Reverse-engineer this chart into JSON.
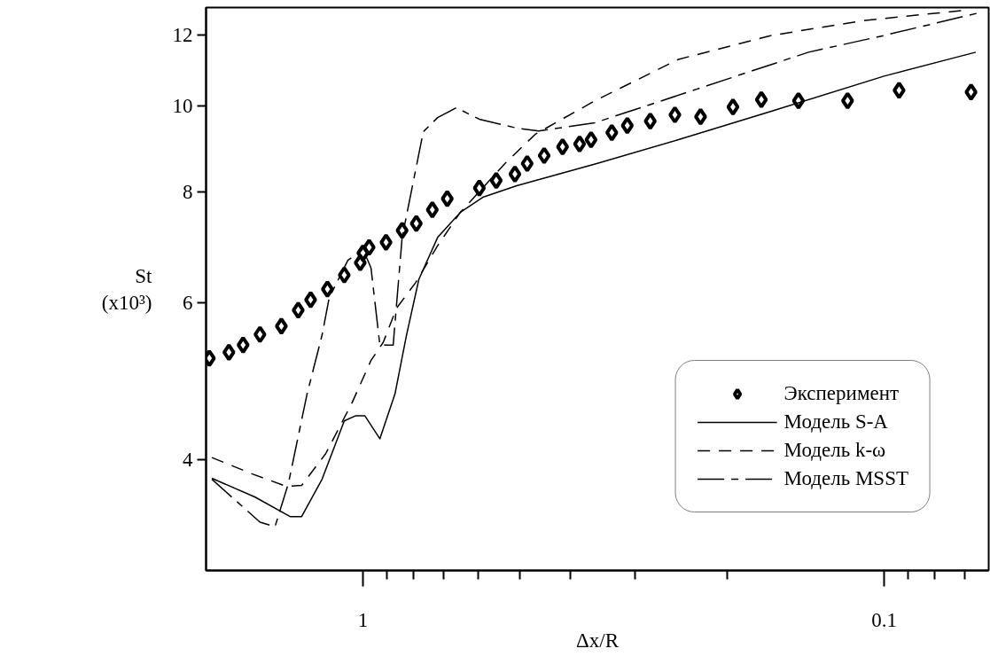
{
  "chart_data": {
    "type": "line",
    "xlabel": "Δx/R",
    "ylabel": "St\n(x10³)",
    "log": "xy",
    "grid": false,
    "legend": "bottom right",
    "xlim": [
      2.0,
      0.063
    ],
    "ylim": [
      3.0,
      12.9
    ],
    "xticks": [
      1,
      0.1,
      {
        "value": 0.9,
        "label": null
      },
      {
        "value": 0.8,
        "label": null
      },
      {
        "value": 0.7,
        "label": null
      },
      {
        "value": 0.6,
        "label": null
      },
      {
        "value": 0.5,
        "label": null
      },
      {
        "value": 0.4,
        "label": null
      },
      {
        "value": 0.3,
        "label": null
      },
      {
        "value": 0.2,
        "label": null
      },
      {
        "value": 0.09,
        "label": null
      },
      {
        "value": 0.08,
        "label": null
      },
      {
        "value": 0.07,
        "label": null
      }
    ],
    "yticks": [
      4,
      6,
      8,
      10,
      12
    ],
    "series": [
      {
        "name": "Эксперимент",
        "type": "scatter",
        "marker": "diamond",
        "color": "#000000",
        "x": [
          1.971,
          1.808,
          1.698,
          1.576,
          1.434,
          1.331,
          1.26,
          1.17,
          1.086,
          1.012,
          1.0,
          0.973,
          0.903,
          0.841,
          0.79,
          0.736,
          0.689,
          0.598,
          0.555,
          0.511,
          0.484,
          0.449,
          0.414,
          0.384,
          0.365,
          0.333,
          0.311,
          0.281,
          0.252,
          0.225,
          0.195,
          0.172,
          0.146,
          0.1175,
          0.0936,
          0.0681
        ],
        "values": [
          5.2,
          5.28,
          5.38,
          5.53,
          5.65,
          5.89,
          6.05,
          6.22,
          6.45,
          6.66,
          6.83,
          6.93,
          7.02,
          7.24,
          7.37,
          7.64,
          7.86,
          8.08,
          8.24,
          8.38,
          8.61,
          8.79,
          8.99,
          9.06,
          9.16,
          9.33,
          9.5,
          9.61,
          9.77,
          9.72,
          9.97,
          10.16,
          10.13,
          10.13,
          10.41,
          10.36
        ]
      },
      {
        "name": "Модель S-A",
        "line_style": "solid",
        "marker": "none",
        "color": "#000000",
        "x": [
          1.949,
          1.613,
          1.38,
          1.311,
          1.198,
          1.086,
          1.032,
          0.992,
          0.928,
          0.868,
          0.825,
          0.781,
          0.719,
          0.65,
          0.589,
          0.507,
          0.356,
          0.248,
          0.1646,
          0.1,
          0.0667
        ],
        "values": [
          3.81,
          3.63,
          3.45,
          3.45,
          3.8,
          4.42,
          4.48,
          4.48,
          4.22,
          4.74,
          5.52,
          6.38,
          7.11,
          7.59,
          7.89,
          8.13,
          8.61,
          9.16,
          9.86,
          10.8,
          11.49
        ]
      },
      {
        "name": "Модель k-ω",
        "line_style": "dashed",
        "marker": "none",
        "color": "#000000",
        "x": [
          1.949,
          1.626,
          1.401,
          1.311,
          1.179,
          1.048,
          0.965,
          0.914,
          0.862,
          0.793,
          0.719,
          0.65,
          0.534,
          0.467,
          0.359,
          0.248,
          0.1646,
          0.1086,
          0.0708
        ],
        "values": [
          4.02,
          3.85,
          3.73,
          3.74,
          4.06,
          4.64,
          5.17,
          5.42,
          5.92,
          6.32,
          6.96,
          7.59,
          8.61,
          9.29,
          10.13,
          11.28,
          12.0,
          12.48,
          12.8
        ]
      },
      {
        "name": "Модель MSST",
        "line_style": "dashdot",
        "marker": "none",
        "color": "#000000",
        "x": [
          1.949,
          1.576,
          1.475,
          1.39,
          1.28,
          1.198,
          1.161,
          1.069,
          1.0,
          0.965,
          0.928,
          0.875,
          0.841,
          0.766,
          0.719,
          0.662,
          0.598,
          0.507,
          0.46,
          0.359,
          0.229,
          0.1396,
          0.1,
          0.0663
        ],
        "values": [
          3.8,
          3.4,
          3.36,
          3.76,
          4.74,
          5.52,
          6.08,
          6.7,
          6.9,
          6.57,
          5.38,
          5.38,
          7.11,
          9.35,
          9.7,
          9.95,
          9.66,
          9.44,
          9.37,
          9.57,
          10.44,
          11.49,
          12.0,
          12.71
        ]
      }
    ]
  }
}
